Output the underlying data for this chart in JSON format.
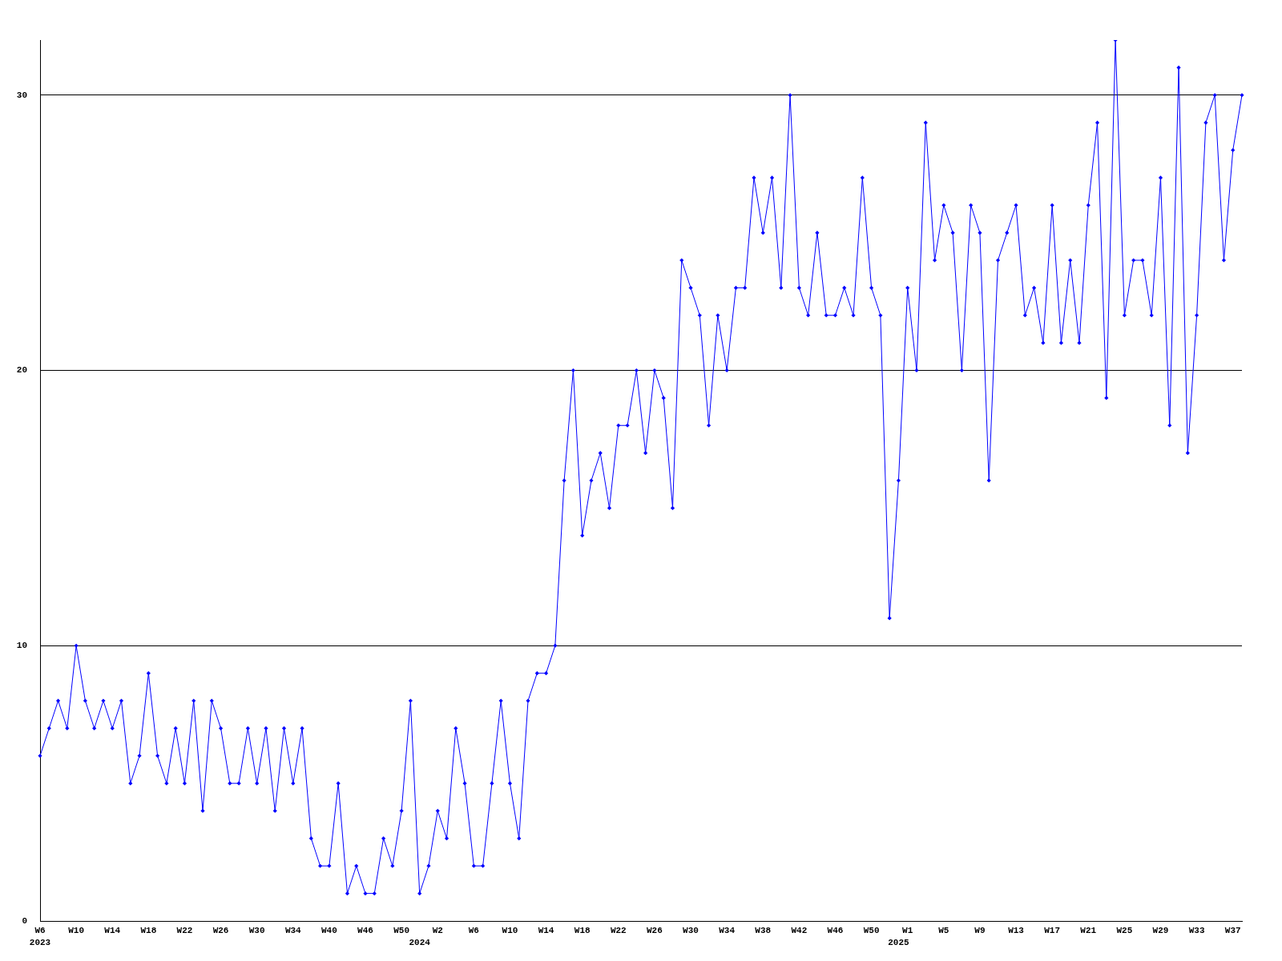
{
  "chart_data": {
    "type": "line",
    "categories": [
      "W6\n2023",
      null,
      null,
      null,
      "W10",
      null,
      null,
      null,
      "W14",
      null,
      null,
      null,
      "W18",
      null,
      null,
      null,
      "W22",
      null,
      null,
      null,
      "W26",
      null,
      null,
      null,
      "W30",
      null,
      null,
      null,
      "W34",
      null,
      null,
      null,
      "W40",
      null,
      null,
      null,
      "W46",
      null,
      null,
      null,
      "W50",
      null,
      "\n2024",
      null,
      "W2",
      null,
      null,
      null,
      "W6",
      null,
      null,
      null,
      "W10",
      null,
      null,
      null,
      "W14",
      null,
      null,
      null,
      "W18",
      null,
      null,
      null,
      "W22",
      null,
      null,
      null,
      "W26",
      null,
      null,
      null,
      "W30",
      null,
      null,
      null,
      "W34",
      null,
      null,
      null,
      "W38",
      null,
      null,
      null,
      "W42",
      null,
      null,
      null,
      "W46",
      null,
      null,
      null,
      "W50",
      null,
      null,
      "\n2025",
      "W1",
      null,
      null,
      null,
      "W5",
      null,
      null,
      null,
      "W9",
      null,
      null,
      null,
      "W13",
      null,
      null,
      null,
      "W17",
      null,
      null,
      null,
      "W21",
      null,
      null,
      null,
      "W25",
      null,
      null,
      null,
      "W29",
      null,
      null,
      null,
      "W33",
      null,
      null,
      null,
      "W37",
      null
    ],
    "values": [
      6,
      7,
      8,
      7,
      10,
      8,
      7,
      8,
      7,
      8,
      5,
      6,
      9,
      6,
      5,
      7,
      5,
      8,
      4,
      8,
      7,
      5,
      5,
      7,
      5,
      7,
      4,
      7,
      5,
      7,
      3,
      2,
      2,
      5,
      1,
      2,
      1,
      1,
      3,
      2,
      4,
      8,
      1,
      2,
      4,
      3,
      7,
      5,
      2,
      2,
      5,
      8,
      5,
      3,
      8,
      9,
      9,
      10,
      16,
      20,
      14,
      16,
      17,
      15,
      18,
      18,
      20,
      17,
      20,
      19,
      15,
      24,
      23,
      22,
      18,
      22,
      20,
      23,
      23,
      27,
      25,
      27,
      23,
      30,
      23,
      22,
      25,
      22,
      22,
      23,
      22,
      27,
      23,
      22,
      11,
      16,
      23,
      20,
      29,
      24,
      26,
      25,
      20,
      26,
      25,
      16,
      24,
      25,
      26,
      22,
      23,
      21,
      26,
      21,
      24,
      21,
      26,
      29,
      19,
      32,
      22,
      24,
      24,
      22,
      27,
      18,
      31,
      17,
      22,
      29,
      30,
      24,
      28,
      30
    ],
    "color": "#0000ff",
    "ylim": [
      0,
      32
    ],
    "yticks": [
      0,
      10,
      20,
      30
    ],
    "grid": "y",
    "marker": "diamond",
    "line_style": "solid"
  }
}
